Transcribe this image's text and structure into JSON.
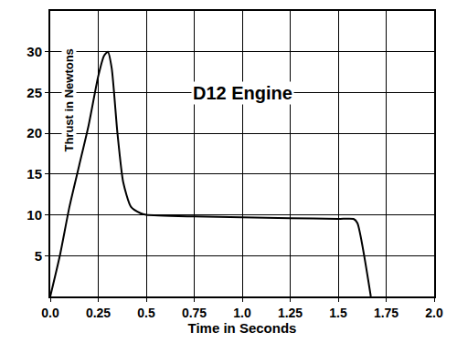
{
  "chart_data": {
    "type": "line",
    "title": "D12 Engine",
    "x_label": "Time in Seconds",
    "y_label": "Thrust in Newtons",
    "x": [
      0,
      0.05,
      0.1,
      0.15,
      0.2,
      0.25,
      0.28,
      0.3,
      0.32,
      0.35,
      0.38,
      0.42,
      0.47,
      0.5,
      0.75,
      1.0,
      1.25,
      1.5,
      1.58,
      1.6,
      1.67
    ],
    "values": [
      0,
      5,
      11,
      16,
      21,
      27,
      29.5,
      30,
      28,
      20,
      14,
      11,
      10.2,
      10,
      9.8,
      9.7,
      9.6,
      9.5,
      9.5,
      9,
      0
    ],
    "color": "#000000",
    "xlim": [
      0,
      2
    ],
    "ylim": [
      0,
      35
    ],
    "xticks": [
      {
        "value": 0,
        "label": "0.0"
      },
      0.25,
      0.5,
      0.75,
      {
        "value": 1,
        "label": "1.0"
      },
      1.25,
      1.5,
      1.75,
      {
        "value": 2,
        "label": "2.0"
      }
    ],
    "yticks": [
      5,
      10,
      15,
      20,
      25,
      30
    ],
    "grid": true
  }
}
